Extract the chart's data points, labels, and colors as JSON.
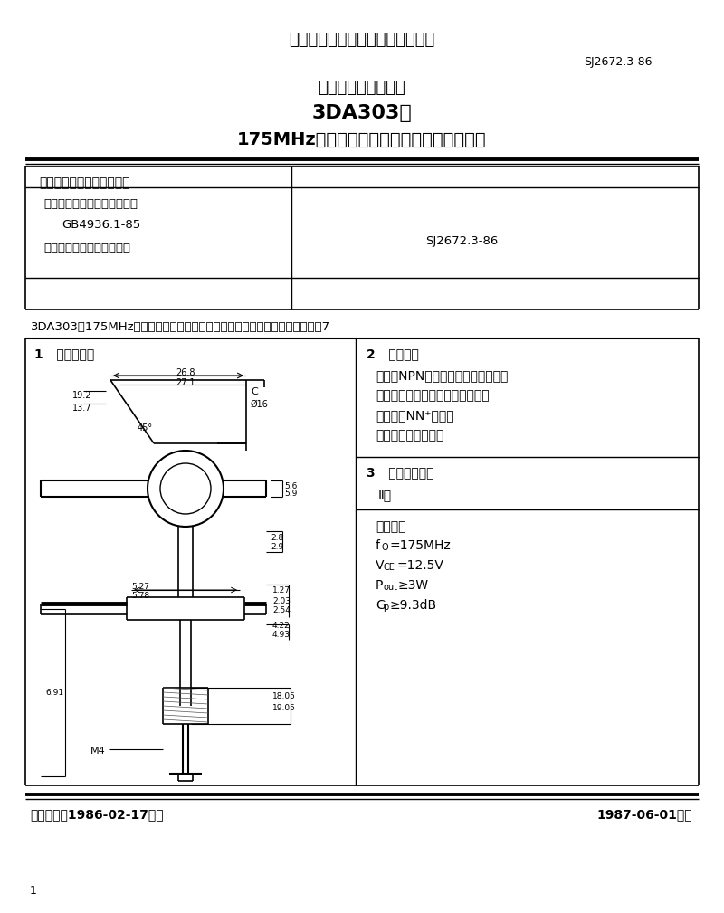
{
  "bg_color": "#ffffff",
  "title_top": "中华人民共和国电子工业部部标准",
  "std_number_top": "SJ2672.3-86",
  "subtitle1": "电子元器件详细规范",
  "subtitle2": "3DA303型",
  "subtitle3": "175MHz管壳额定的低电压双极型功率晶体管",
  "table_org": "中国电子技术标准化研究所",
  "table_basis_line1": "电子元器件质量评定是根据：",
  "table_basis_line2": "GB4936.1-85",
  "table_basis_line3": "《半导体分立器件总规范》",
  "table_std_right": "SJ2672.3-86",
  "desc_line": "3DA303型175MHz管壳额定的低电压双极型功率晶体管，定货资料，见本规范7",
  "sec1_title": "1   机械说明：",
  "sec2_title": "2   简略说明",
  "sec2_text1": "该管系NPN外延平面晶体管，在低压",
  "sec2_text2": "电台中作末前级和末级功率放大。",
  "sec2_text3": "材料：硅NN⁺外延片",
  "sec2_text4": "封装：金属陶瓷封装",
  "sec3_title": "3   质量评定类别",
  "sec3_class": "Ⅱ类",
  "sec3_ref": "参考数据",
  "footer_left": "电子工业部1986-02-17发布",
  "footer_right": "1987-06-01实施",
  "page_number": "1"
}
